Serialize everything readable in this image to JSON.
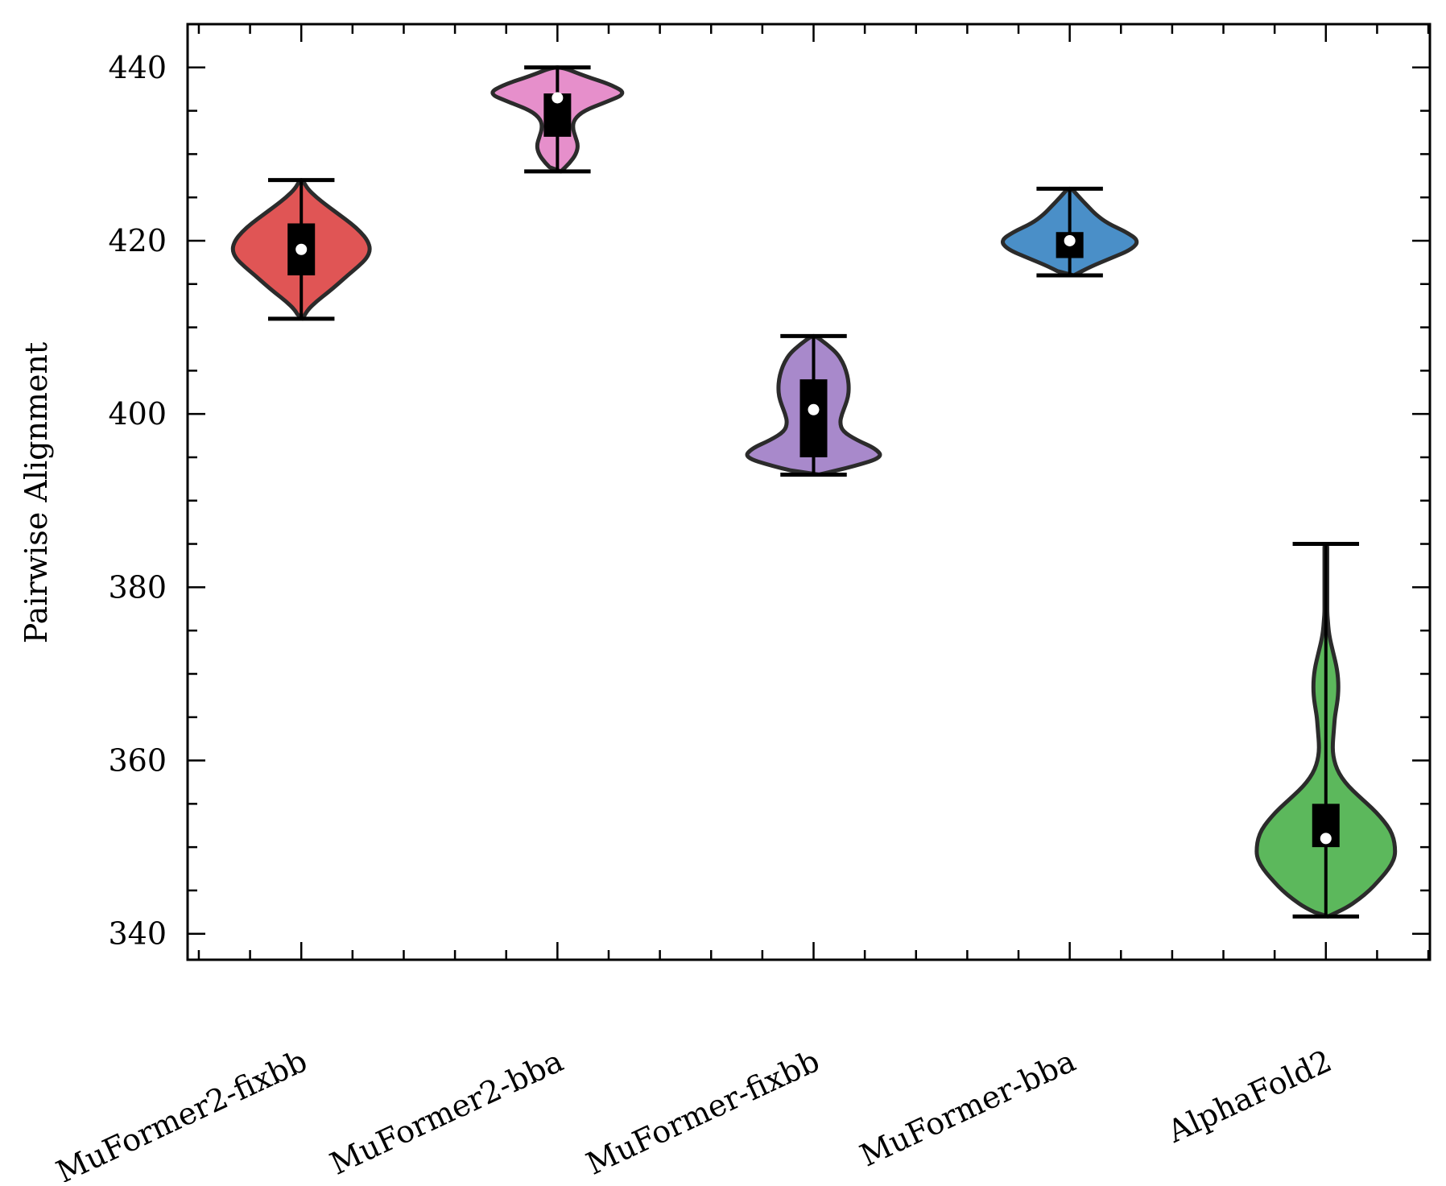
{
  "chart_data": {
    "type": "violin",
    "title": "",
    "xlabel": "",
    "ylabel": "Pairwise Alignment",
    "ylim": [
      337,
      445
    ],
    "yticks": [
      340,
      360,
      380,
      400,
      420,
      440
    ],
    "ytick_labels": [
      "340",
      "360",
      "380",
      "400",
      "420",
      "440"
    ],
    "y_minor_step": 5,
    "categories": [
      "MuFormer2-fixbb",
      "MuFormer2-bba",
      "MuFormer-fixbb",
      "MuFormer-bba",
      "AlphaFold2"
    ],
    "series": [
      {
        "color": "#e05555",
        "min": 411,
        "max": 427,
        "q1": 416,
        "q3": 422,
        "median": 419,
        "density": [
          [
            411,
            0.02
          ],
          [
            412,
            0.09
          ],
          [
            413,
            0.22
          ],
          [
            414,
            0.38
          ],
          [
            415,
            0.53
          ],
          [
            416,
            0.67
          ],
          [
            417,
            0.82
          ],
          [
            418,
            0.95
          ],
          [
            419,
            1.0
          ],
          [
            420,
            0.96
          ],
          [
            421,
            0.86
          ],
          [
            422,
            0.72
          ],
          [
            423,
            0.55
          ],
          [
            424,
            0.38
          ],
          [
            425,
            0.22
          ],
          [
            426,
            0.09
          ],
          [
            427,
            0.02
          ]
        ]
      },
      {
        "color": "#e68fcb",
        "min": 428,
        "max": 440,
        "q1": 432,
        "q3": 437,
        "median": 436.5,
        "density": [
          [
            428,
            0.05
          ],
          [
            429,
            0.18
          ],
          [
            430,
            0.27
          ],
          [
            431,
            0.3
          ],
          [
            432,
            0.26
          ],
          [
            433,
            0.22
          ],
          [
            434,
            0.24
          ],
          [
            435,
            0.38
          ],
          [
            436,
            0.7
          ],
          [
            437,
            1.0
          ],
          [
            438,
            0.78
          ],
          [
            439,
            0.4
          ],
          [
            440,
            0.08
          ]
        ]
      },
      {
        "color": "#a889cb",
        "min": 393,
        "max": 409,
        "q1": 395,
        "q3": 404,
        "median": 400.5,
        "density": [
          [
            393,
            0.08
          ],
          [
            394,
            0.6
          ],
          [
            395,
            1.0
          ],
          [
            396,
            0.9
          ],
          [
            397,
            0.62
          ],
          [
            398,
            0.42
          ],
          [
            399,
            0.38
          ],
          [
            400,
            0.41
          ],
          [
            401,
            0.46
          ],
          [
            402,
            0.5
          ],
          [
            403,
            0.51
          ],
          [
            404,
            0.5
          ],
          [
            405,
            0.47
          ],
          [
            406,
            0.42
          ],
          [
            407,
            0.34
          ],
          [
            408,
            0.2
          ],
          [
            409,
            0.03
          ]
        ]
      },
      {
        "color": "#4a8fc8",
        "min": 416,
        "max": 426,
        "q1": 418,
        "q3": 421,
        "median": 420,
        "density": [
          [
            416,
            0.06
          ],
          [
            417,
            0.3
          ],
          [
            418,
            0.6
          ],
          [
            419,
            0.9
          ],
          [
            420,
            1.0
          ],
          [
            421,
            0.82
          ],
          [
            422,
            0.55
          ],
          [
            423,
            0.38
          ],
          [
            424,
            0.26
          ],
          [
            425,
            0.14
          ],
          [
            426,
            0.03
          ]
        ]
      },
      {
        "color": "#5cb85c",
        "min": 342,
        "max": 385,
        "q1": 350,
        "q3": 355,
        "median": 351,
        "density": [
          [
            342,
            0.03
          ],
          [
            343,
            0.3
          ],
          [
            344,
            0.48
          ],
          [
            345,
            0.63
          ],
          [
            346,
            0.75
          ],
          [
            347,
            0.86
          ],
          [
            348,
            0.95
          ],
          [
            349,
            1.0
          ],
          [
            350,
            1.0
          ],
          [
            351,
            0.98
          ],
          [
            352,
            0.93
          ],
          [
            353,
            0.84
          ],
          [
            354,
            0.73
          ],
          [
            355,
            0.6
          ],
          [
            356,
            0.46
          ],
          [
            357,
            0.33
          ],
          [
            358,
            0.23
          ],
          [
            359,
            0.16
          ],
          [
            360,
            0.12
          ],
          [
            361,
            0.1
          ],
          [
            362,
            0.1
          ],
          [
            363,
            0.11
          ],
          [
            364,
            0.12
          ],
          [
            365,
            0.13
          ],
          [
            366,
            0.15
          ],
          [
            367,
            0.17
          ],
          [
            368,
            0.18
          ],
          [
            369,
            0.18
          ],
          [
            370,
            0.17
          ],
          [
            371,
            0.15
          ],
          [
            372,
            0.12
          ],
          [
            373,
            0.09
          ],
          [
            374,
            0.06
          ],
          [
            375,
            0.04
          ],
          [
            376,
            0.03
          ],
          [
            377,
            0.02
          ],
          [
            378,
            0.02
          ],
          [
            379,
            0.02
          ],
          [
            380,
            0.02
          ],
          [
            381,
            0.02
          ],
          [
            382,
            0.02
          ],
          [
            383,
            0.02
          ],
          [
            384,
            0.02
          ],
          [
            385,
            0.02
          ]
        ]
      }
    ],
    "grid": false,
    "legend": "none"
  }
}
